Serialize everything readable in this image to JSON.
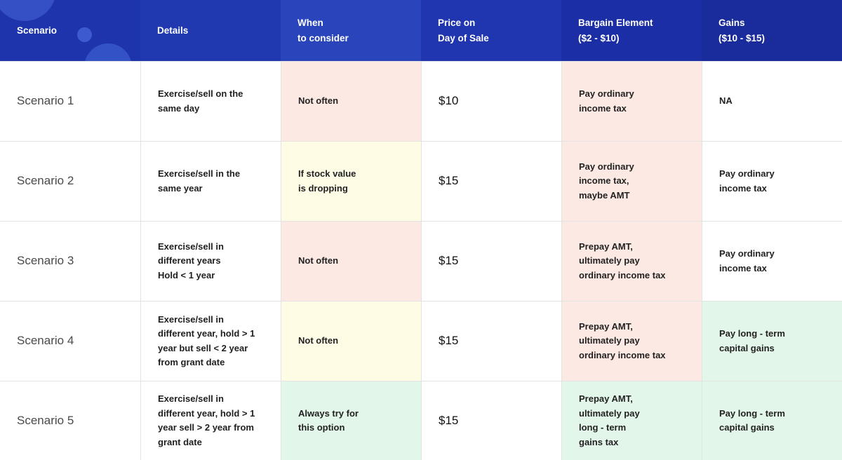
{
  "header": [
    {
      "label": "Scenario"
    },
    {
      "label": "Details"
    },
    {
      "label": "When\nto consider"
    },
    {
      "label": "Price on\nDay of Sale"
    },
    {
      "label": "Bargain Element\n($2 - $10)"
    },
    {
      "label": "Gains\n($10 - $15)"
    }
  ],
  "colors": {
    "header_blue": "#1a2b9c",
    "pink": "#fde9e4",
    "yellow": "#fffce6",
    "green": "#e3f6ea"
  },
  "rows": [
    {
      "scenario": "Scenario 1",
      "details": "Exercise/sell on the\nsame day",
      "when": "Not often",
      "price": "$10",
      "bargain": "Pay ordinary\nincome tax",
      "gains": "NA"
    },
    {
      "scenario": "Scenario 2",
      "details": "Exercise/sell in the\nsame year",
      "when": "If stock value\nis dropping",
      "price": "$15",
      "bargain": "Pay ordinary\nincome tax,\nmaybe AMT",
      "gains": "Pay ordinary\nincome tax"
    },
    {
      "scenario": "Scenario 3",
      "details": "Exercise/sell in\ndifferent years\nHold < 1 year",
      "when": "Not often",
      "price": "$15",
      "bargain": "Prepay AMT,\nultimately pay\nordinary income tax",
      "gains": "Pay ordinary\nincome tax"
    },
    {
      "scenario": "Scenario 4",
      "details": "Exercise/sell in\ndifferent year, hold > 1\nyear but sell < 2 year\nfrom grant date",
      "when": "Not often",
      "price": "$15",
      "bargain": "Prepay AMT,\nultimately pay\nordinary income tax",
      "gains": "Pay long - term\ncapital gains"
    },
    {
      "scenario": "Scenario 5",
      "details": "Exercise/sell in\ndifferent year, hold > 1\nyear sell > 2 year from\ngrant date",
      "when": "Always try for\nthis option",
      "price": "$15",
      "bargain": "Prepay AMT,\nultimately pay\nlong - term\ngains tax",
      "gains": "Pay long - term\ncapital gains"
    }
  ]
}
